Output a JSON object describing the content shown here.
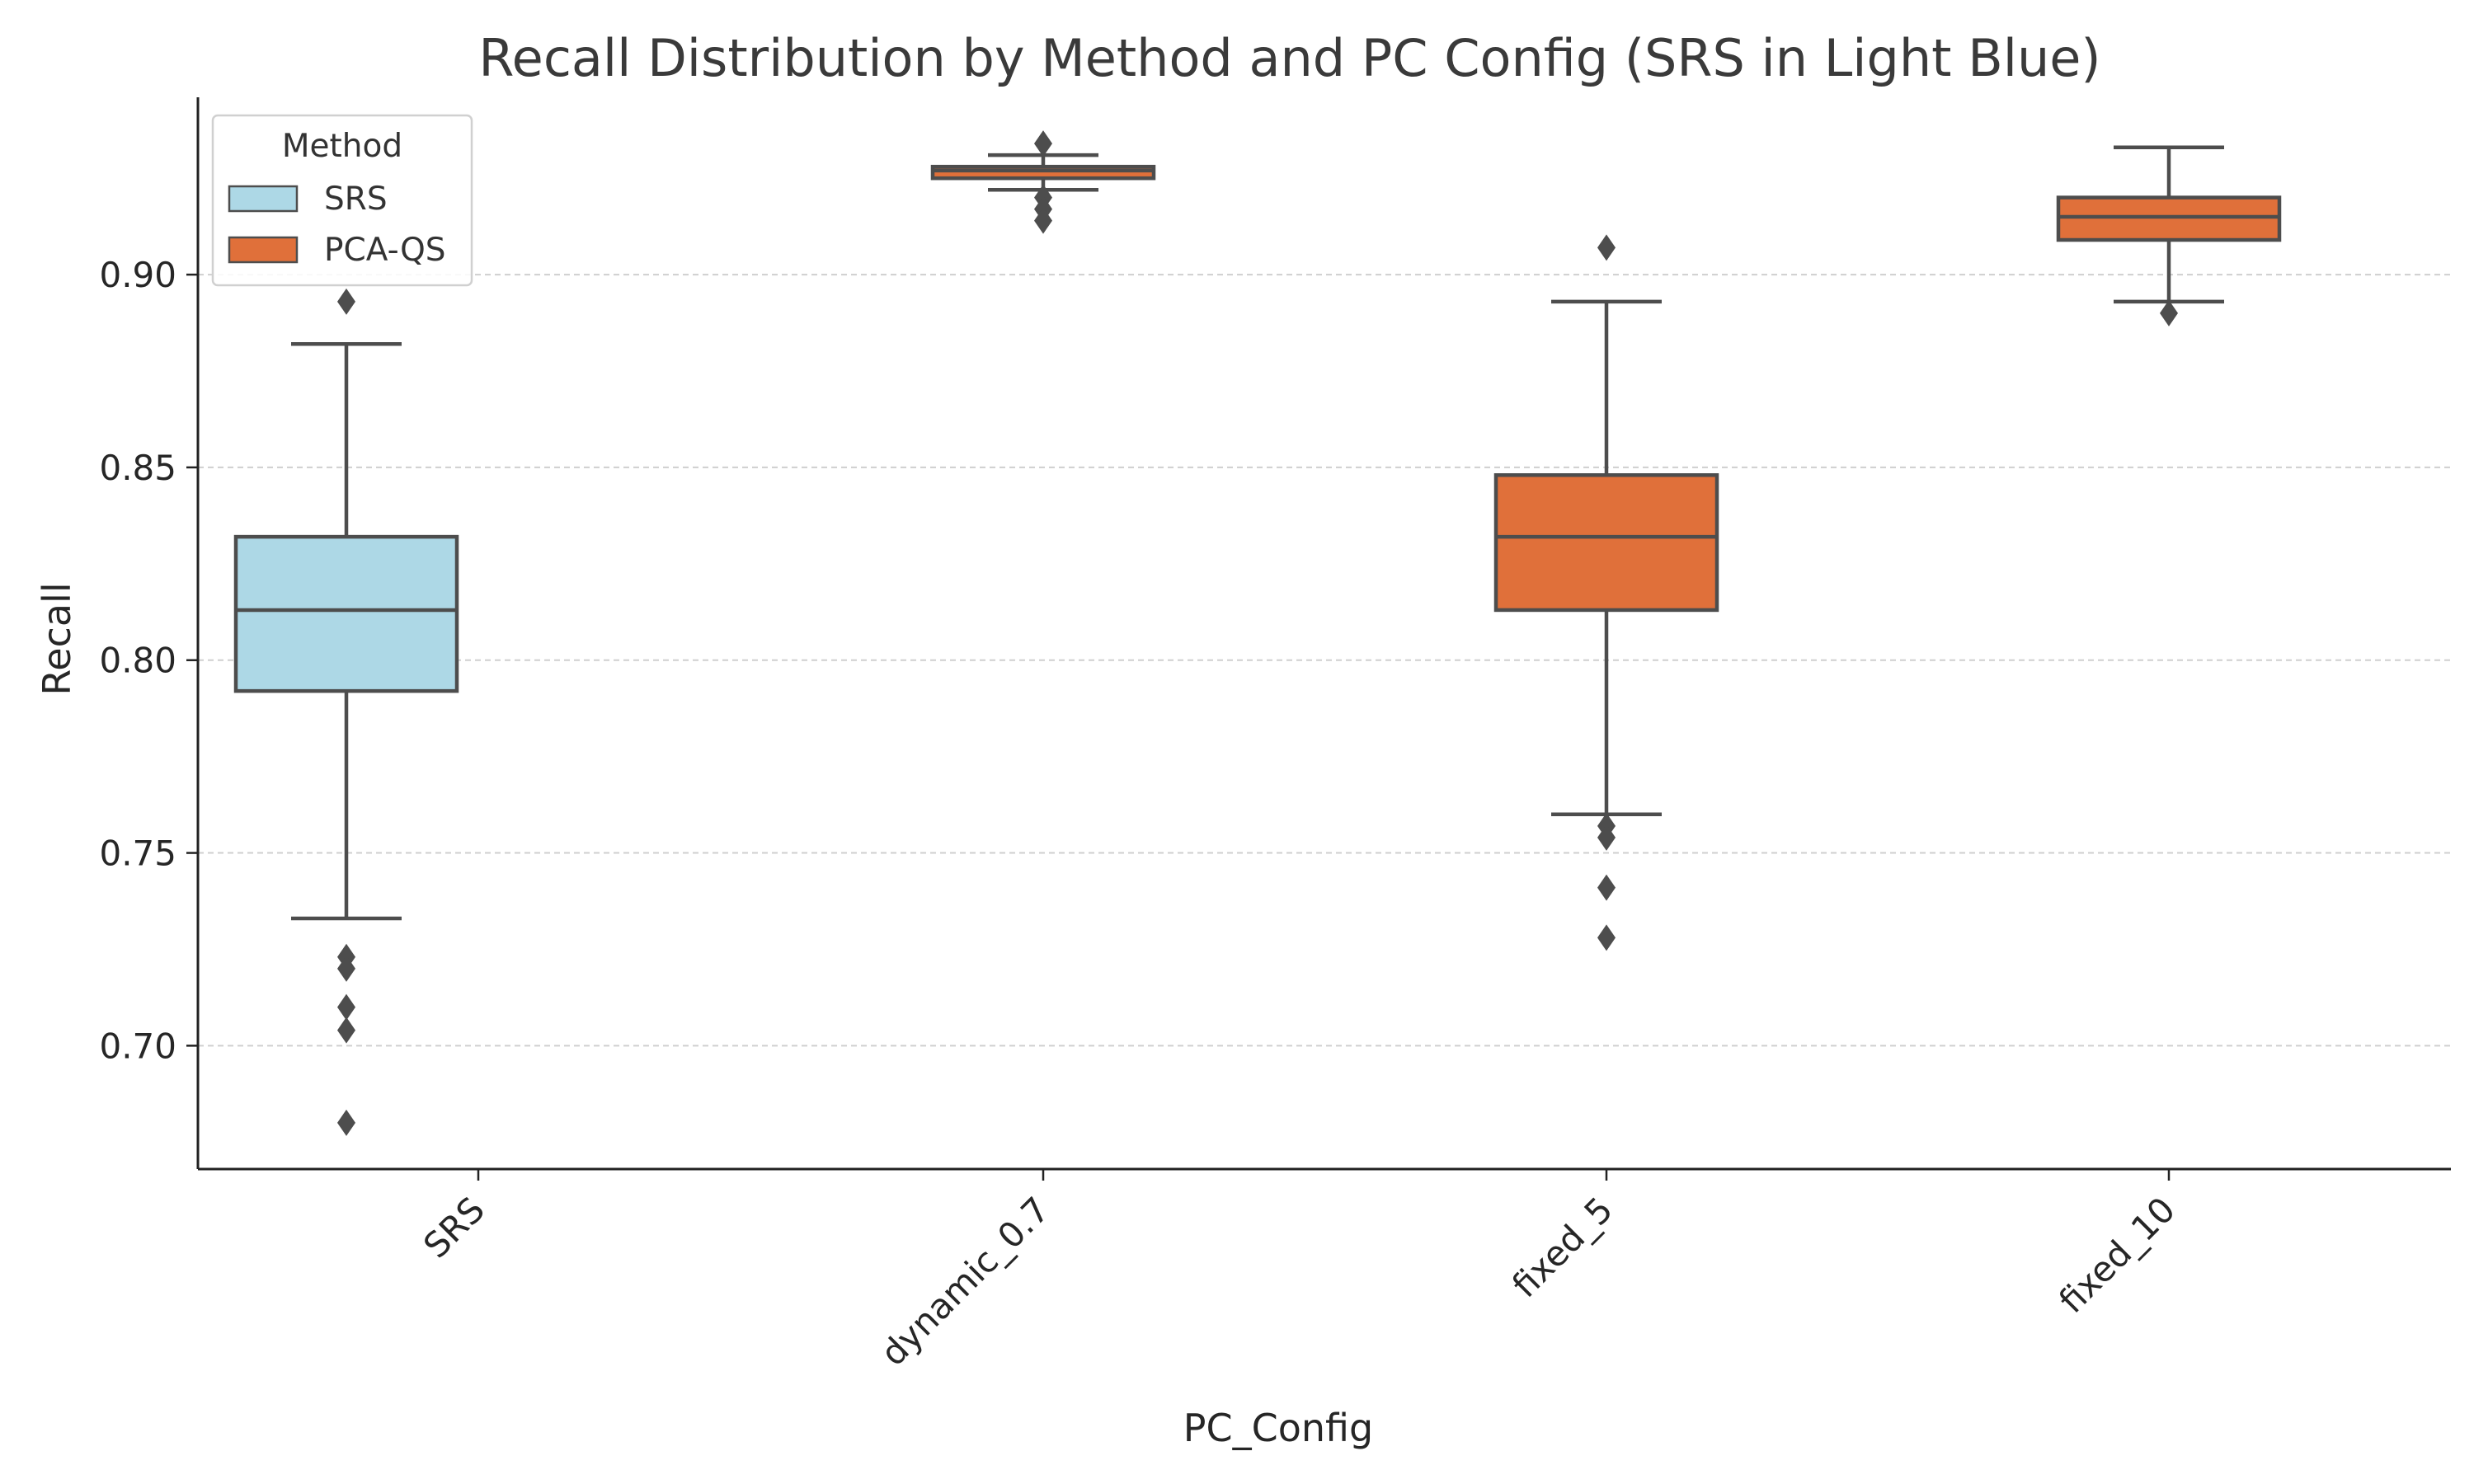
{
  "chart_data": {
    "type": "box",
    "title": "Recall Distribution by Method and PC Config (SRS in Light Blue)",
    "xlabel": "PC_Config",
    "ylabel": "Recall",
    "ylim": [
      0.668,
      0.946
    ],
    "yticks": [
      0.7,
      0.75,
      0.8,
      0.85,
      0.9
    ],
    "ytick_labels": [
      "0.70",
      "0.75",
      "0.80",
      "0.85",
      "0.90"
    ],
    "grid": "horizontal dashed",
    "categories": [
      "SRS",
      "dynamic_0.7",
      "fixed_5",
      "fixed_10"
    ],
    "legend": {
      "title": "Method",
      "placement": "top-left",
      "entries": [
        {
          "label": "SRS",
          "color": "#add8e6"
        },
        {
          "label": "PCA-QS",
          "color": "#e0703a"
        }
      ]
    },
    "series": [
      {
        "name": "SRS",
        "color": "#add8e6",
        "boxes": [
          {
            "category": "SRS",
            "whisker_low": 0.733,
            "q1": 0.792,
            "median": 0.813,
            "q3": 0.832,
            "whisker_high": 0.882,
            "outliers": [
              0.893,
              0.723,
              0.72,
              0.71,
              0.704,
              0.68
            ]
          }
        ]
      },
      {
        "name": "PCA-QS",
        "color": "#e0703a",
        "boxes": [
          {
            "category": "dynamic_0.7",
            "whisker_low": 0.922,
            "q1": 0.925,
            "median": 0.927,
            "q3": 0.928,
            "whisker_high": 0.931,
            "outliers": [
              0.934,
              0.92,
              0.917,
              0.914
            ]
          },
          {
            "category": "fixed_5",
            "whisker_low": 0.76,
            "q1": 0.813,
            "median": 0.832,
            "q3": 0.848,
            "whisker_high": 0.893,
            "outliers": [
              0.907,
              0.757,
              0.754,
              0.741,
              0.728
            ]
          },
          {
            "category": "fixed_10",
            "whisker_low": 0.893,
            "q1": 0.909,
            "median": 0.915,
            "q3": 0.92,
            "whisker_high": 0.933,
            "outliers": [
              0.89
            ]
          }
        ]
      }
    ]
  }
}
